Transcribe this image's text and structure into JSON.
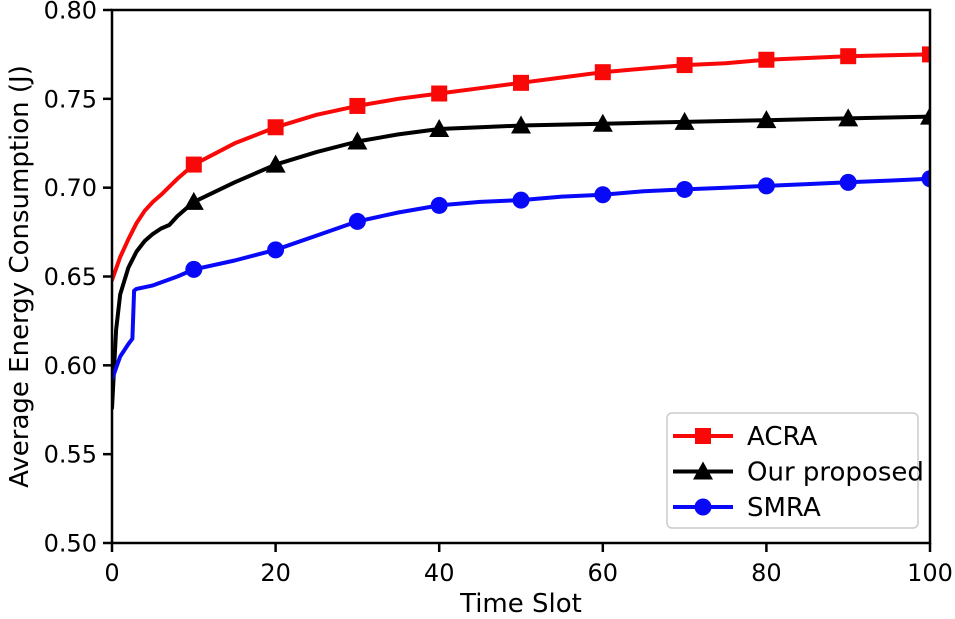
{
  "chart_data": {
    "type": "line",
    "title": "",
    "xlabel": "Time Slot",
    "ylabel": "Average Energy Consumption (J)",
    "xlim": [
      0,
      100
    ],
    "ylim": [
      0.5,
      0.8
    ],
    "xticks": [
      0,
      20,
      40,
      60,
      80,
      100
    ],
    "yticks": [
      0.5,
      0.55,
      0.6,
      0.65,
      0.7,
      0.75,
      0.8
    ],
    "ytick_decimals": 2,
    "grid": false,
    "background": "#ffffff",
    "frame_color": "#000000",
    "legend_position": "lower right",
    "legend_border_color": "#cccccc",
    "marker_x": [
      10,
      20,
      30,
      40,
      50,
      60,
      70,
      80,
      90,
      100
    ],
    "series": [
      {
        "name": "ACRA",
        "color": "#f90808",
        "marker": "square",
        "x": [
          0,
          1,
          2,
          3,
          4,
          5,
          6,
          8,
          10,
          15,
          20,
          25,
          30,
          35,
          40,
          45,
          50,
          55,
          60,
          65,
          70,
          75,
          80,
          85,
          90,
          95,
          100
        ],
        "values": [
          0.648,
          0.661,
          0.671,
          0.68,
          0.687,
          0.692,
          0.696,
          0.705,
          0.713,
          0.725,
          0.734,
          0.741,
          0.746,
          0.75,
          0.753,
          0.756,
          0.759,
          0.762,
          0.765,
          0.767,
          0.769,
          0.77,
          0.772,
          0.773,
          0.774,
          0.7745,
          0.775
        ]
      },
      {
        "name": "Our proposed",
        "color": "#000000",
        "marker": "triangle-up",
        "x": [
          0,
          0.5,
          1,
          2,
          3,
          4,
          5,
          6,
          7,
          8,
          10,
          15,
          20,
          25,
          30,
          35,
          40,
          45,
          50,
          55,
          60,
          65,
          70,
          75,
          80,
          85,
          90,
          95,
          100
        ],
        "values": [
          0.576,
          0.62,
          0.64,
          0.655,
          0.664,
          0.67,
          0.674,
          0.677,
          0.679,
          0.684,
          0.692,
          0.703,
          0.713,
          0.72,
          0.726,
          0.73,
          0.733,
          0.734,
          0.735,
          0.7355,
          0.736,
          0.7365,
          0.737,
          0.7375,
          0.738,
          0.7385,
          0.739,
          0.7395,
          0.74
        ]
      },
      {
        "name": "SMRA",
        "color": "#0909f9",
        "marker": "circle",
        "x": [
          0,
          1,
          2,
          2.5,
          2.7,
          3,
          5,
          8,
          10,
          15,
          20,
          25,
          30,
          35,
          40,
          45,
          50,
          55,
          60,
          65,
          70,
          75,
          80,
          85,
          90,
          95,
          100
        ],
        "values": [
          0.592,
          0.605,
          0.612,
          0.615,
          0.642,
          0.643,
          0.645,
          0.65,
          0.654,
          0.659,
          0.665,
          0.673,
          0.681,
          0.686,
          0.69,
          0.692,
          0.693,
          0.695,
          0.696,
          0.698,
          0.699,
          0.7,
          0.701,
          0.702,
          0.703,
          0.704,
          0.705
        ]
      }
    ]
  }
}
